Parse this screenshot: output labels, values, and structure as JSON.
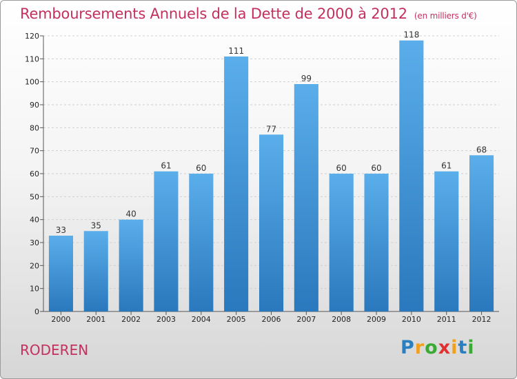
{
  "title": "Remboursements Annuels de la Dette de 2000 à 2012",
  "unit": "(en milliers d'€)",
  "commune": "RODEREN",
  "logo": {
    "letters": [
      "P",
      "r",
      "o",
      "x",
      "i",
      "t",
      "i"
    ],
    "colors": [
      "#2a7fc0",
      "#f0a020",
      "#3aaa35",
      "#e03030",
      "#f0a020",
      "#2a7fc0",
      "#3aaa35"
    ]
  },
  "chart_data": {
    "type": "bar",
    "categories": [
      "2000",
      "2001",
      "2002",
      "2003",
      "2004",
      "2005",
      "2006",
      "2007",
      "2008",
      "2009",
      "2010",
      "2011",
      "2012"
    ],
    "values": [
      33,
      35,
      40,
      61,
      60,
      111,
      77,
      99,
      60,
      60,
      118,
      61,
      68
    ],
    "ylim": [
      0,
      120
    ],
    "yticks": [
      0,
      10,
      20,
      30,
      40,
      50,
      60,
      70,
      80,
      90,
      100,
      110,
      120
    ],
    "grid": true,
    "bar_color": "#3a8fd6"
  }
}
